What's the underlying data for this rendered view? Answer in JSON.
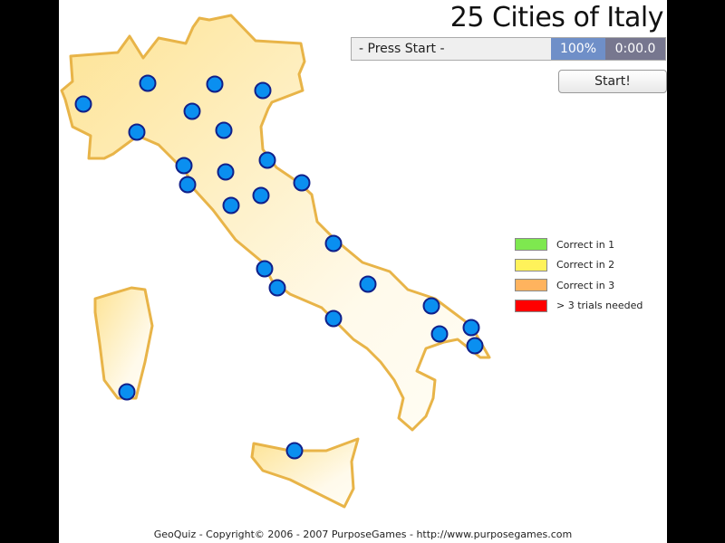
{
  "title": "25 Cities of Italy",
  "status": {
    "prompt": "- Press Start -",
    "percent": "100%",
    "timer": "0:00.0"
  },
  "start_button": "Start!",
  "legend": [
    {
      "label": "Correct in 1",
      "color": "#7ee84f"
    },
    {
      "label": "Correct in 2",
      "color": "#fff25a"
    },
    {
      "label": "Correct in 3",
      "color": "#ffb35e"
    },
    {
      "label": "> 3 trials needed",
      "color": "#ff0000"
    }
  ],
  "colors": {
    "land_fill": "#fde7a0",
    "land_stroke": "#e8b448",
    "city_fill": "#0a8ff0",
    "city_stroke": "#10208a"
  },
  "city_count": 25,
  "footer": "GeoQuiz - Copyright© 2006 - 2007 PurposeGames - http://www.purposegames.com"
}
